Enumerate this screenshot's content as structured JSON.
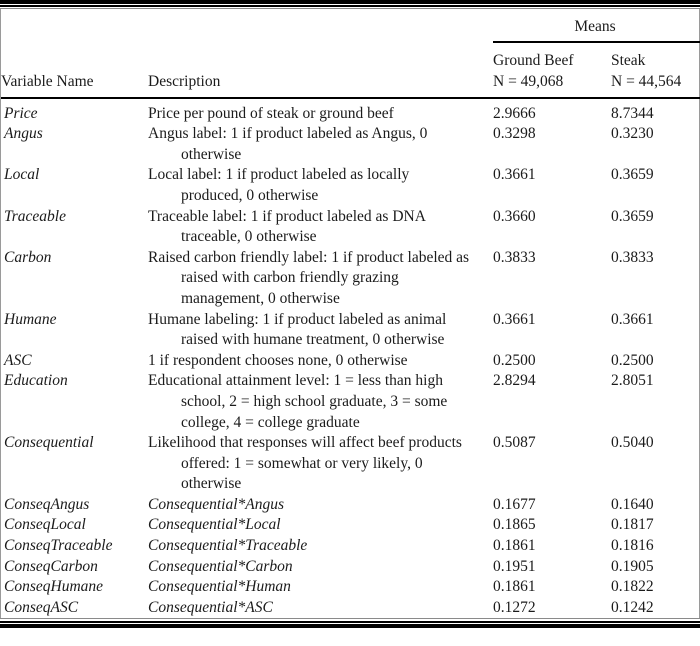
{
  "table": {
    "spanner": "Means",
    "columns": {
      "variable": "Variable Name",
      "description": "Description",
      "ground_beef_label": "Ground Beef",
      "ground_beef_n": "N = 49,068",
      "steak_label": "Steak",
      "steak_n": "N = 44,564"
    },
    "rows": [
      {
        "variable": "Price",
        "description": "Price per pound of steak or ground beef",
        "desc_italic": false,
        "ground_beef": "2.9666",
        "steak": "8.7344"
      },
      {
        "variable": "Angus",
        "description": "Angus label: 1 if product labeled as Angus, 0 otherwise",
        "desc_italic": false,
        "ground_beef": "0.3298",
        "steak": "0.3230"
      },
      {
        "variable": "Local",
        "description": "Local label: 1 if product labeled as locally produced, 0 otherwise",
        "desc_italic": false,
        "ground_beef": "0.3661",
        "steak": "0.3659"
      },
      {
        "variable": "Traceable",
        "description": "Traceable label: 1 if product labeled as DNA traceable, 0 otherwise",
        "desc_italic": false,
        "ground_beef": "0.3660",
        "steak": "0.3659"
      },
      {
        "variable": "Carbon",
        "description": "Raised carbon friendly label: 1 if product labeled as raised with carbon friendly grazing management, 0 otherwise",
        "desc_italic": false,
        "ground_beef": "0.3833",
        "steak": "0.3833"
      },
      {
        "variable": "Humane",
        "description": "Humane labeling: 1 if product labeled as animal raised with humane treatment, 0 otherwise",
        "desc_italic": false,
        "ground_beef": "0.3661",
        "steak": "0.3661"
      },
      {
        "variable": "ASC",
        "description": "1 if respondent chooses none, 0 otherwise",
        "desc_italic": false,
        "ground_beef": "0.2500",
        "steak": "0.2500"
      },
      {
        "variable": "Education",
        "description": "Educational attainment level: 1 = less than high school, 2 = high school graduate, 3 = some college, 4 = college graduate",
        "desc_italic": false,
        "ground_beef": "2.8294",
        "steak": "2.8051"
      },
      {
        "variable": "Consequential",
        "description": "Likelihood that responses will affect beef products offered: 1 = somewhat or very likely, 0 otherwise",
        "desc_italic": false,
        "ground_beef": "0.5087",
        "steak": "0.5040"
      },
      {
        "variable": "ConseqAngus",
        "description": "Consequential*Angus",
        "desc_italic": true,
        "ground_beef": "0.1677",
        "steak": "0.1640"
      },
      {
        "variable": "ConseqLocal",
        "description": "Consequential*Local",
        "desc_italic": true,
        "ground_beef": "0.1865",
        "steak": "0.1817"
      },
      {
        "variable": "ConseqTraceable",
        "description": "Consequential*Traceable",
        "desc_italic": true,
        "ground_beef": "0.1861",
        "steak": "0.1816"
      },
      {
        "variable": "ConseqCarbon",
        "description": "Consequential*Carbon",
        "desc_italic": true,
        "ground_beef": "0.1951",
        "steak": "0.1905"
      },
      {
        "variable": "ConseqHumane",
        "description": "Consequential*Human",
        "desc_italic": true,
        "ground_beef": "0.1861",
        "steak": "0.1822"
      },
      {
        "variable": "ConseqASC",
        "description": "Consequential*ASC",
        "desc_italic": true,
        "ground_beef": "0.1272",
        "steak": "0.1242"
      }
    ]
  },
  "colors": {
    "text": "#1b1b1b",
    "rule": "#000000",
    "frame": "#9a9a9a",
    "background": "#ffffff"
  }
}
